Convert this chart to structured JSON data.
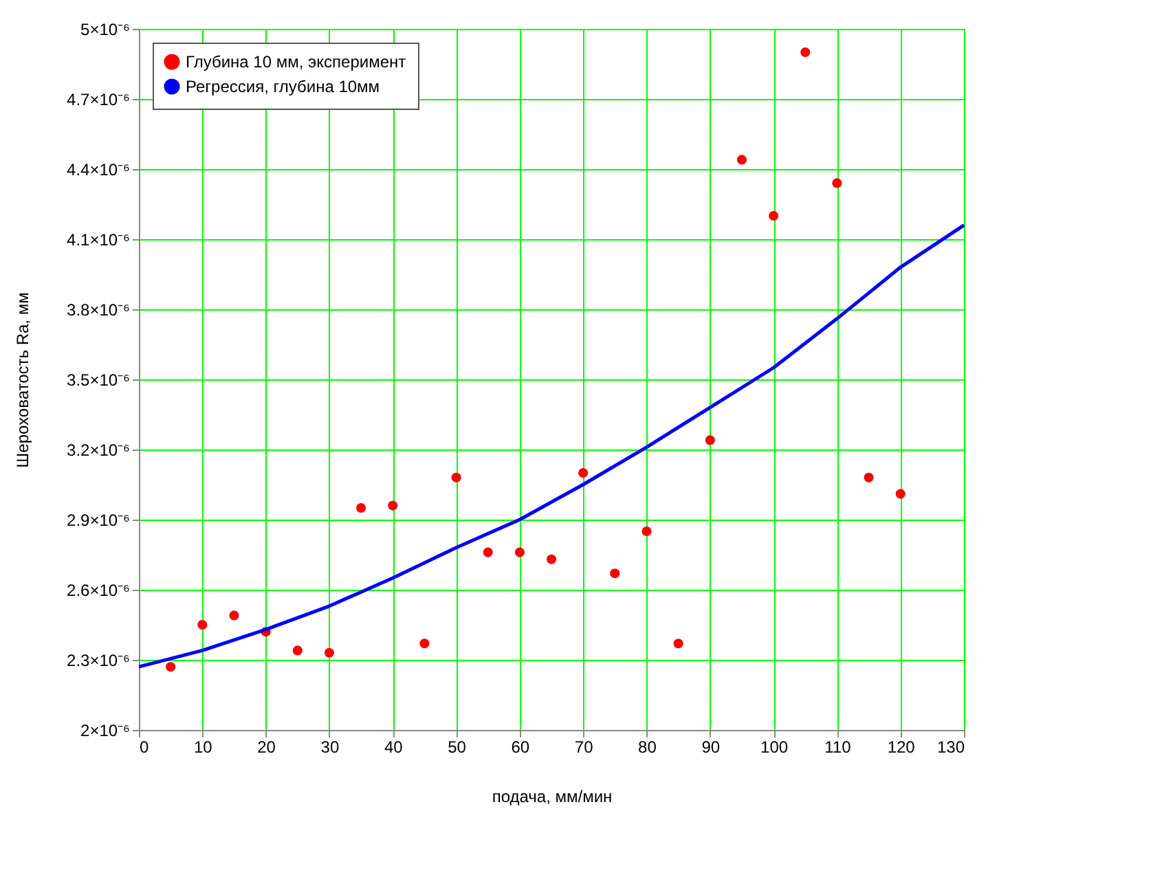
{
  "chart_data": {
    "type": "scatter",
    "xlabel": "подача, мм/мин",
    "ylabel": "Шероховатость Ra, мм",
    "xlim": [
      0,
      130
    ],
    "xticks": [
      0,
      10,
      20,
      30,
      40,
      50,
      60,
      70,
      80,
      90,
      100,
      110,
      120,
      130
    ],
    "ylim": [
      2e-06,
      5e-06
    ],
    "yticks": [
      {
        "value": 2e-06,
        "label": "2×10⁻⁶"
      },
      {
        "value": 2.3e-06,
        "label": "2.3×10⁻⁶"
      },
      {
        "value": 2.6e-06,
        "label": "2.6×10⁻⁶"
      },
      {
        "value": 2.9e-06,
        "label": "2.9×10⁻⁶"
      },
      {
        "value": 3.2e-06,
        "label": "3.2×10⁻⁶"
      },
      {
        "value": 3.5e-06,
        "label": "3.5×10⁻⁶"
      },
      {
        "value": 3.8e-06,
        "label": "3.8×10⁻⁶"
      },
      {
        "value": 4.1e-06,
        "label": "4.1×10⁻⁶"
      },
      {
        "value": 4.4e-06,
        "label": "4.4×10⁻⁶"
      },
      {
        "value": 4.7e-06,
        "label": "4.7×10⁻⁶"
      },
      {
        "value": 5e-06,
        "label": "5×10⁻⁶"
      }
    ],
    "grid": true,
    "legend": "top left",
    "series": [
      {
        "name": "Глубина 10 мм, эксперимент",
        "marker": "circle",
        "color": "#ff0000",
        "x": [
          5,
          10,
          15,
          20,
          25,
          30,
          35,
          40,
          45,
          50,
          55,
          60,
          65,
          70,
          75,
          80,
          85,
          90,
          95,
          100,
          105,
          110,
          115,
          120
        ],
        "values": [
          2.27e-06,
          2.45e-06,
          2.49e-06,
          2.42e-06,
          2.34e-06,
          2.33e-06,
          2.95e-06,
          2.96e-06,
          2.37e-06,
          3.08e-06,
          2.76e-06,
          2.76e-06,
          2.73e-06,
          3.1e-06,
          2.67e-06,
          2.85e-06,
          2.37e-06,
          3.24e-06,
          4.44e-06,
          4.2e-06,
          4.9e-06,
          4.34e-06,
          3.08e-06,
          3.01e-06
        ]
      },
      {
        "name": "Регрессия, глубина 10мм",
        "type": "line",
        "color": "#0000ff",
        "line_style": "solid",
        "x": [
          0,
          10,
          20,
          30,
          40,
          50,
          60,
          70,
          80,
          90,
          100,
          110,
          120,
          130
        ],
        "values": [
          2.27e-06,
          2.34e-06,
          2.43e-06,
          2.53e-06,
          2.65e-06,
          2.78e-06,
          2.9e-06,
          3.05e-06,
          3.21e-06,
          3.38e-06,
          3.55e-06,
          3.76e-06,
          3.98e-06,
          4.16e-06
        ]
      }
    ]
  }
}
